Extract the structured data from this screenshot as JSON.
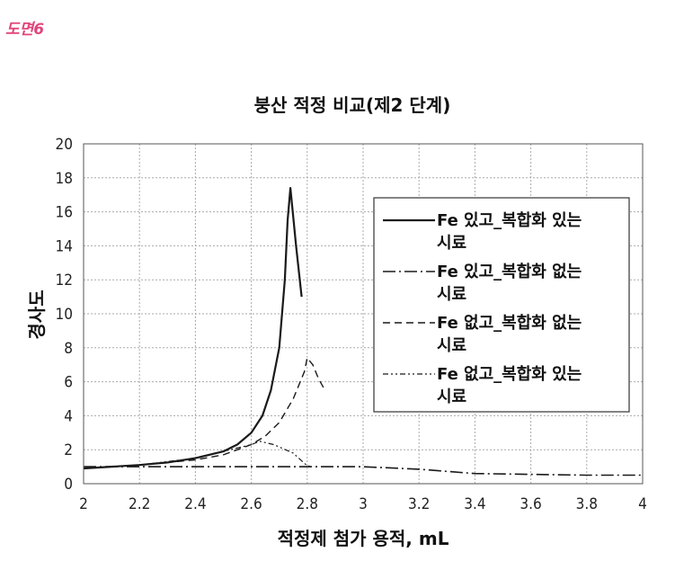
{
  "figure_label": "도면6",
  "chart_data": {
    "type": "line",
    "title": "붕산 적정 비교(제2 단계)",
    "xlabel": "적정제 첨가 용적, mL",
    "ylabel": "경사도",
    "xlim": [
      2,
      4
    ],
    "ylim": [
      0,
      20
    ],
    "x_ticks": [
      "2",
      "2.2",
      "2.4",
      "2.6",
      "2.8",
      "3",
      "3.2",
      "3.4",
      "3.6",
      "3.8",
      "4"
    ],
    "y_ticks": [
      "0",
      "2",
      "4",
      "6",
      "8",
      "10",
      "12",
      "14",
      "16",
      "18",
      "20"
    ],
    "grid": true,
    "legend_position": "right",
    "series": [
      {
        "name": "Fe 있고_복합화 있는 시료",
        "style": "solid",
        "points": [
          [
            2.0,
            0.9
          ],
          [
            2.1,
            1.0
          ],
          [
            2.2,
            1.1
          ],
          [
            2.3,
            1.25
          ],
          [
            2.4,
            1.5
          ],
          [
            2.5,
            1.9
          ],
          [
            2.55,
            2.3
          ],
          [
            2.6,
            3.0
          ],
          [
            2.64,
            4.0
          ],
          [
            2.67,
            5.5
          ],
          [
            2.7,
            8.0
          ],
          [
            2.72,
            12.0
          ],
          [
            2.73,
            15.5
          ],
          [
            2.74,
            17.4
          ],
          [
            2.76,
            14.0
          ],
          [
            2.78,
            11.0
          ]
        ]
      },
      {
        "name": "Fe 있고_복합화 없는 시료",
        "style": "dashdot",
        "points": [
          [
            2.0,
            1.0
          ],
          [
            2.2,
            1.0
          ],
          [
            2.4,
            1.0
          ],
          [
            2.6,
            1.0
          ],
          [
            2.8,
            1.0
          ],
          [
            3.0,
            1.0
          ],
          [
            3.2,
            0.85
          ],
          [
            3.4,
            0.6
          ],
          [
            3.6,
            0.55
          ],
          [
            3.8,
            0.5
          ],
          [
            4.0,
            0.5
          ]
        ]
      },
      {
        "name": "Fe 없고_복합화 없는 시료",
        "style": "dashed",
        "points": [
          [
            2.0,
            0.9
          ],
          [
            2.2,
            1.1
          ],
          [
            2.4,
            1.4
          ],
          [
            2.5,
            1.7
          ],
          [
            2.6,
            2.3
          ],
          [
            2.65,
            2.8
          ],
          [
            2.7,
            3.6
          ],
          [
            2.75,
            5.0
          ],
          [
            2.79,
            6.6
          ],
          [
            2.8,
            7.4
          ],
          [
            2.82,
            7.0
          ],
          [
            2.84,
            6.2
          ],
          [
            2.86,
            5.6
          ]
        ]
      },
      {
        "name": "Fe 없고_복합화 있는 시료",
        "style": "dashdotdot",
        "points": [
          [
            2.0,
            0.9
          ],
          [
            2.2,
            1.1
          ],
          [
            2.4,
            1.5
          ],
          [
            2.5,
            1.9
          ],
          [
            2.6,
            2.3
          ],
          [
            2.63,
            2.5
          ],
          [
            2.68,
            2.3
          ],
          [
            2.75,
            1.8
          ],
          [
            2.8,
            1.05
          ],
          [
            2.82,
            1.0
          ]
        ]
      }
    ],
    "legend_lines": [
      [
        "Fe 있고_복합화 있는",
        "시료"
      ],
      [
        "Fe 있고_복합화 없는",
        "시료"
      ],
      [
        "Fe 없고_복합화 없는",
        "시료"
      ],
      [
        "Fe 없고_복합화 있는",
        "시료"
      ]
    ]
  }
}
